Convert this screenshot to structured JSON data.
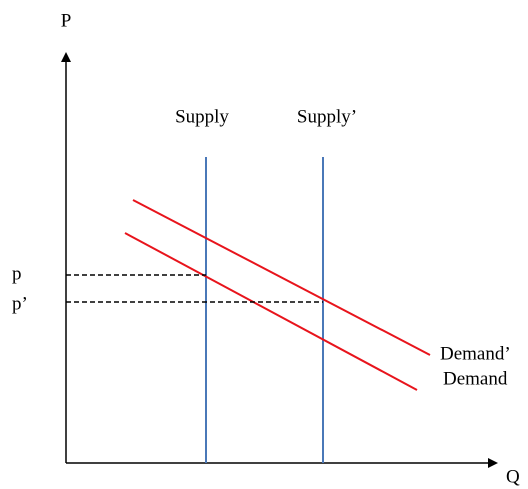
{
  "axes": {
    "y_label": "P",
    "x_label": "Q"
  },
  "curves": {
    "supply": "Supply",
    "supply_shifted": "Supply’",
    "demand": "Demand",
    "demand_shifted": "Demand’"
  },
  "prices": {
    "p": "p",
    "p_shifted": "p’"
  }
}
